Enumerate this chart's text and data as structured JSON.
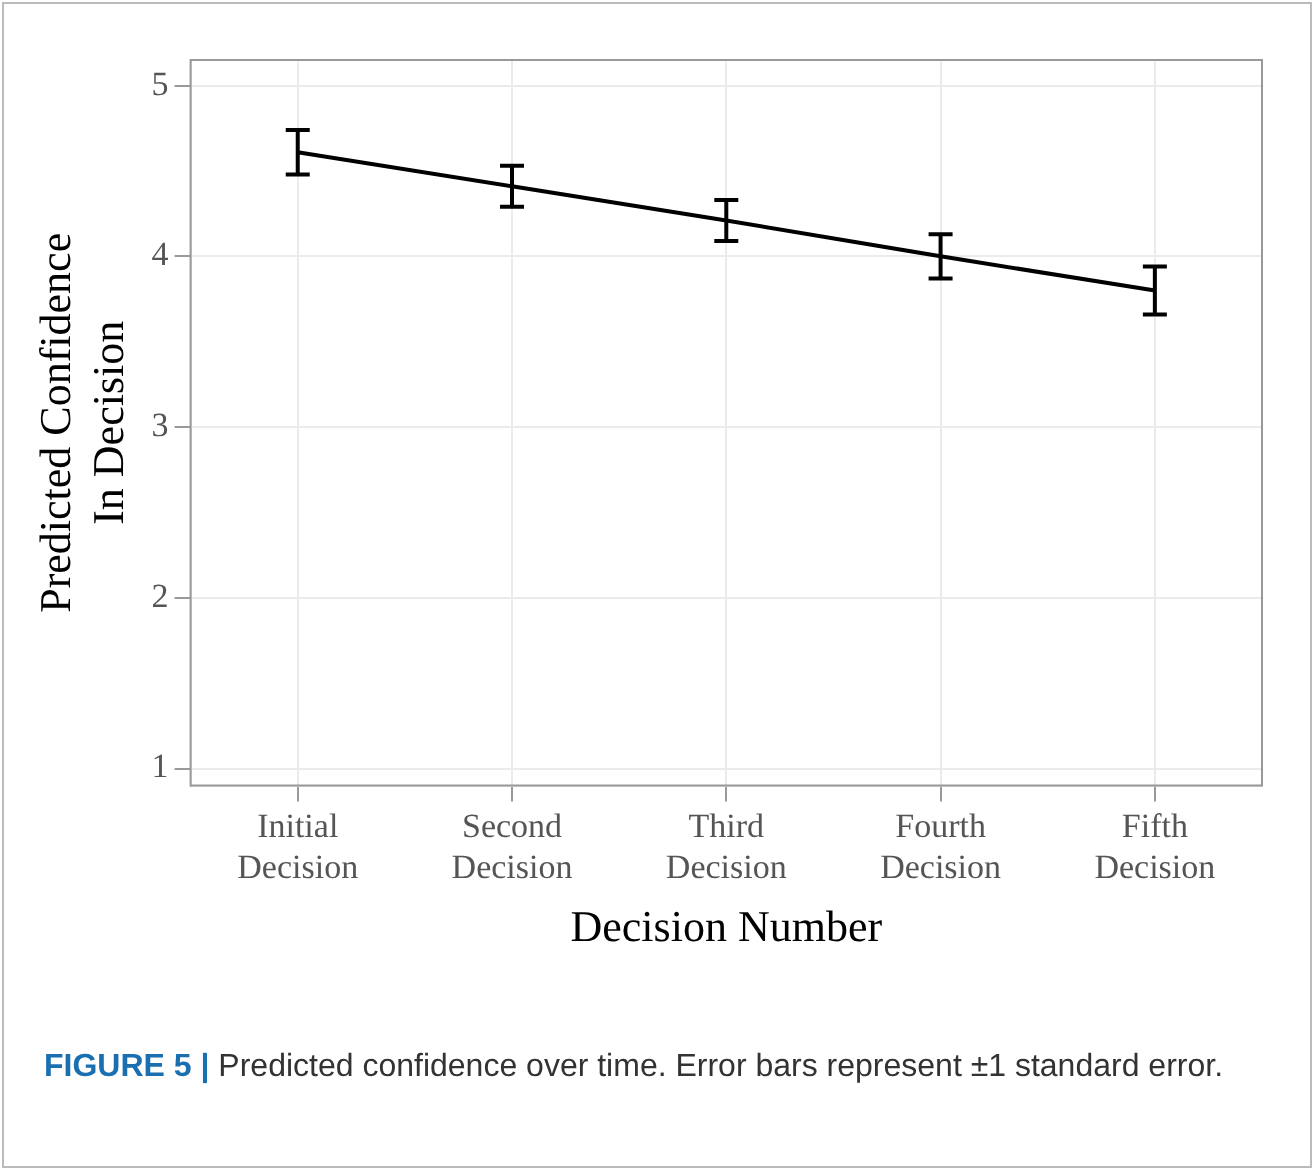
{
  "chart_data": {
    "type": "line",
    "xlabel": "Decision Number",
    "ylabel": "Predicted Confidence\nIn Decision",
    "categories": [
      "Initial\nDecision",
      "Second\nDecision",
      "Third\nDecision",
      "Fourth\nDecision",
      "Fifth\nDecision"
    ],
    "series": [
      {
        "color": "#000000",
        "values": [
          4.61,
          4.41,
          4.21,
          4.0,
          3.8
        ],
        "errors": [
          0.13,
          0.12,
          0.12,
          0.13,
          0.14
        ]
      }
    ],
    "ylim": [
      0.9,
      5.15
    ],
    "yticks": [
      1,
      2,
      3,
      4,
      5
    ],
    "grid": true,
    "marker": "none",
    "line_style": "solid",
    "annotations": [
      "FIGURE 5 | Predicted confidence over time. Error bars represent ±1 standard error."
    ]
  }
}
